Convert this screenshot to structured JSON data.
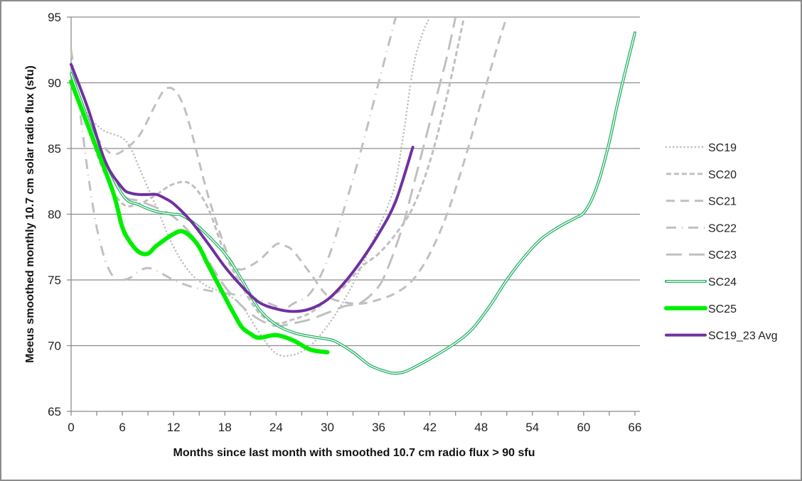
{
  "chart_data": {
    "type": "line",
    "title": "",
    "xlabel": "Months since last month with smoothed 10.7 cm radio flux > 90 sfu",
    "ylabel": "Meeus smoothed monthly 10.7 cm solar radio flux (sfu)",
    "xlim": [
      0,
      66
    ],
    "ylim": [
      65,
      95
    ],
    "xticks": [
      0,
      6,
      12,
      18,
      24,
      30,
      36,
      42,
      48,
      54,
      60,
      66
    ],
    "yticks": [
      65,
      70,
      75,
      80,
      85,
      90,
      95
    ],
    "grid": "horizontal",
    "legend_position": "right",
    "series": [
      {
        "name": "SC19",
        "color": "#c0c0c0",
        "style": "dotted",
        "x": [
          0,
          2,
          3,
          4,
          6,
          7,
          8,
          10,
          12,
          14,
          16,
          18,
          20,
          22,
          24,
          26,
          28,
          30,
          32,
          34,
          36,
          37,
          38,
          39,
          40,
          41,
          42
        ],
        "y": [
          90.5,
          87.5,
          86.8,
          86.3,
          85.8,
          85.0,
          83.5,
          80.5,
          77.5,
          75.5,
          74.5,
          74.0,
          73.0,
          71.0,
          69.4,
          69.3,
          70.0,
          71.5,
          73.5,
          76.0,
          79.0,
          80.5,
          82.5,
          86.5,
          91.0,
          93.5,
          95.0
        ]
      },
      {
        "name": "SC20",
        "color": "#c0c0c0",
        "style": "short-dash",
        "x": [
          0,
          2,
          4,
          6,
          8,
          10,
          12,
          14,
          16,
          18,
          20,
          22,
          24,
          26,
          28,
          30,
          32,
          34,
          36,
          38,
          40,
          42,
          44,
          46
        ],
        "y": [
          90.8,
          86.5,
          83.0,
          80.8,
          80.8,
          81.5,
          82.3,
          82.3,
          80.5,
          77.0,
          74.5,
          72.5,
          71.7,
          72.0,
          72.5,
          73.5,
          74.5,
          76.0,
          77.0,
          78.5,
          80.5,
          84.0,
          89.0,
          95.0
        ]
      },
      {
        "name": "SC21",
        "color": "#c0c0c0",
        "style": "dash",
        "x": [
          0,
          2,
          4,
          5,
          6,
          8,
          10,
          11,
          12,
          13,
          14,
          16,
          18,
          19,
          20,
          22,
          24,
          25,
          26,
          28,
          30,
          32,
          34,
          36,
          38,
          40,
          42,
          44,
          46,
          48,
          50,
          51
        ],
        "y": [
          91.0,
          87.0,
          85.0,
          84.6,
          84.8,
          86.0,
          88.5,
          89.5,
          89.5,
          88.5,
          86.5,
          81.5,
          77.5,
          76.2,
          75.8,
          76.5,
          77.7,
          77.6,
          77.2,
          75.5,
          73.8,
          73.3,
          73.2,
          73.5,
          74.0,
          75.0,
          77.0,
          80.0,
          84.0,
          88.5,
          93.0,
          95.0
        ]
      },
      {
        "name": "SC22",
        "color": "#c0c0c0",
        "style": "dash-dot",
        "x": [
          0,
          1,
          2,
          3,
          4,
          5,
          6,
          7,
          8,
          9,
          10,
          12,
          14,
          16,
          18,
          20,
          22,
          24,
          25,
          26,
          28,
          30,
          32,
          34,
          36,
          38
        ],
        "y": [
          92.5,
          88.0,
          83.0,
          79.0,
          76.5,
          75.2,
          75.0,
          75.2,
          75.7,
          75.9,
          75.7,
          75.0,
          74.5,
          74.2,
          74.0,
          73.8,
          73.5,
          73.0,
          72.8,
          73.2,
          74.0,
          76.5,
          80.5,
          85.0,
          90.0,
          95.0
        ]
      },
      {
        "name": "SC23",
        "color": "#c0c0c0",
        "style": "long-dash",
        "x": [
          0,
          2,
          4,
          6,
          8,
          10,
          12,
          14,
          16,
          18,
          20,
          22,
          24,
          26,
          28,
          30,
          32,
          34,
          36,
          37,
          38,
          39,
          40,
          41,
          42,
          43,
          44,
          45
        ],
        "y": [
          91.0,
          87.0,
          84.0,
          81.5,
          81.0,
          80.5,
          79.8,
          78.5,
          76.5,
          74.5,
          73.0,
          72.0,
          71.5,
          71.7,
          72.0,
          72.5,
          73.0,
          73.3,
          74.5,
          75.8,
          77.5,
          79.5,
          82.0,
          84.5,
          87.0,
          89.5,
          92.0,
          95.0
        ]
      },
      {
        "name": "SC24",
        "color": "#23b064",
        "style": "double",
        "x": [
          0,
          3,
          6,
          8,
          10,
          12,
          13,
          15,
          18,
          20,
          22,
          24,
          26,
          28,
          30,
          31,
          33,
          35,
          37,
          38,
          39,
          40,
          42,
          45,
          47,
          49,
          51,
          53,
          55,
          57,
          59,
          60,
          61,
          62,
          63,
          64,
          65,
          66
        ],
        "y": [
          90.7,
          85.5,
          81.5,
          80.7,
          80.2,
          80.0,
          79.9,
          79.0,
          77.0,
          75.0,
          72.8,
          71.6,
          71.0,
          70.7,
          70.5,
          70.3,
          69.5,
          68.5,
          68.0,
          67.9,
          68.0,
          68.3,
          69.0,
          70.2,
          71.3,
          73.0,
          75.0,
          76.7,
          78.1,
          79.0,
          79.7,
          80.1,
          81.2,
          83.0,
          85.5,
          88.5,
          91.2,
          93.8
        ]
      },
      {
        "name": "SC25",
        "color": "#00ee00",
        "style": "thick",
        "x": [
          0,
          3,
          5,
          6,
          7,
          8,
          9,
          10,
          12,
          13,
          14,
          15,
          16,
          18,
          19,
          20,
          21,
          22,
          24,
          26,
          28,
          30
        ],
        "y": [
          90.1,
          85.0,
          81.5,
          79.0,
          77.8,
          77.1,
          77.0,
          77.6,
          78.5,
          78.7,
          78.3,
          77.5,
          76.2,
          73.7,
          72.5,
          71.4,
          70.9,
          70.6,
          70.8,
          70.4,
          69.7,
          69.5
        ]
      },
      {
        "name": "SC19_23 Avg",
        "color": "#7030a0",
        "style": "solid",
        "x": [
          0,
          2,
          4,
          6,
          7,
          8,
          9,
          10,
          11,
          12,
          14,
          16,
          18,
          20,
          22,
          24,
          26,
          28,
          30,
          32,
          34,
          36,
          38,
          40
        ],
        "y": [
          91.4,
          88.0,
          84.0,
          82.0,
          81.6,
          81.5,
          81.5,
          81.5,
          81.2,
          80.8,
          79.5,
          77.8,
          76.0,
          74.5,
          73.3,
          72.8,
          72.6,
          72.8,
          73.5,
          74.8,
          76.5,
          78.5,
          81.0,
          85.1
        ]
      }
    ]
  }
}
